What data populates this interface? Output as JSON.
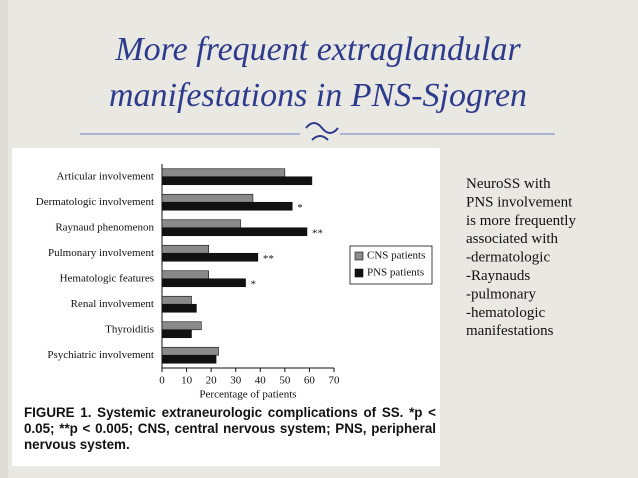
{
  "slide": {
    "title_lines": [
      "More  frequent extraglandular",
      "manifestations in PNS-Sjogren"
    ],
    "body_lines": [
      "NeuroSS with",
      "PNS involvement",
      "is more frequently",
      "associated with",
      "-dermatologic",
      "-Raynauds",
      "-pulmonary",
      "-hematologic",
      "manifestations"
    ],
    "caption": "FIGURE 1.  Systemic extraneurologic complications of SS. *p < 0.05; **p < 0.005; CNS, central nervous system; PNS, peripheral nervous system."
  },
  "chart_data": {
    "type": "hbar",
    "categories": [
      "Articular involvement",
      "Dermatologic involvement",
      "Raynaud phenomenon",
      "Pulmonary involvement",
      "Hematologic features",
      "Renal involvement",
      "Thyroiditis",
      "Psychiatric involvement"
    ],
    "series": [
      {
        "name": "CNS patients",
        "color": "#8a8a8a",
        "values": [
          50,
          37,
          32,
          19,
          19,
          12,
          16,
          23
        ]
      },
      {
        "name": "PNS patients",
        "color": "#111111",
        "values": [
          61,
          53,
          59,
          39,
          34,
          14,
          12,
          22
        ],
        "markers": [
          null,
          "*",
          "**",
          "**",
          "*",
          null,
          null,
          null
        ]
      }
    ],
    "xlabel": "Percentage of patients",
    "xlim": [
      0,
      70
    ],
    "xticks": [
      0,
      10,
      20,
      30,
      40,
      50,
      60,
      70
    ],
    "legend": "right"
  }
}
